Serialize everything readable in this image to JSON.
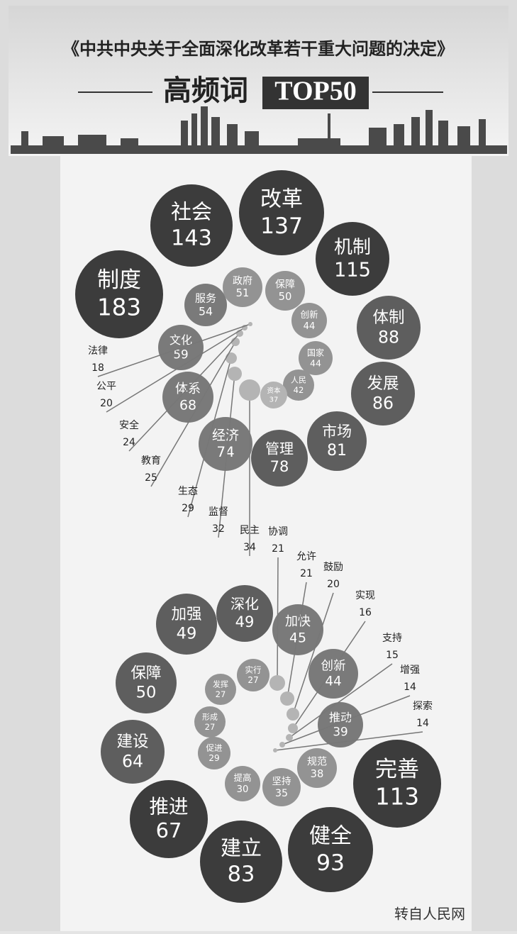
{
  "chart_data": {
    "type": "bubble-spiral",
    "title": "《中共中央关于全面深化改革若干重大问题的决定》",
    "subtitle": "高频词",
    "badge": "TOP50",
    "groups": [
      {
        "categories": [
          "制度",
          "社会",
          "改革",
          "机制",
          "体制",
          "发展",
          "市场",
          "管理",
          "经济",
          "体系",
          "文化",
          "服务",
          "政府",
          "保障",
          "创新",
          "国家",
          "人民",
          "资本",
          "民主",
          "监督",
          "生态",
          "教育",
          "安全",
          "公平",
          "法律"
        ],
        "values": [
          183,
          143,
          137,
          115,
          88,
          86,
          81,
          78,
          74,
          68,
          59,
          54,
          51,
          50,
          44,
          44,
          42,
          37,
          34,
          32,
          29,
          25,
          24,
          20,
          18
        ]
      },
      {
        "categories": [
          "完善",
          "健全",
          "建立",
          "推进",
          "建设",
          "保障",
          "加强",
          "深化",
          "加快",
          "创新",
          "推动",
          "规范",
          "坚持",
          "提高",
          "促进",
          "形成",
          "发挥",
          "实行",
          "协调",
          "允许",
          "鼓励",
          "实现",
          "支持",
          "增强",
          "探索"
        ],
        "values": [
          113,
          93,
          83,
          67,
          64,
          50,
          49,
          49,
          45,
          44,
          39,
          38,
          35,
          30,
          29,
          27,
          27,
          27,
          21,
          21,
          20,
          16,
          15,
          14,
          14
        ]
      }
    ],
    "source": "转自人民网"
  }
}
